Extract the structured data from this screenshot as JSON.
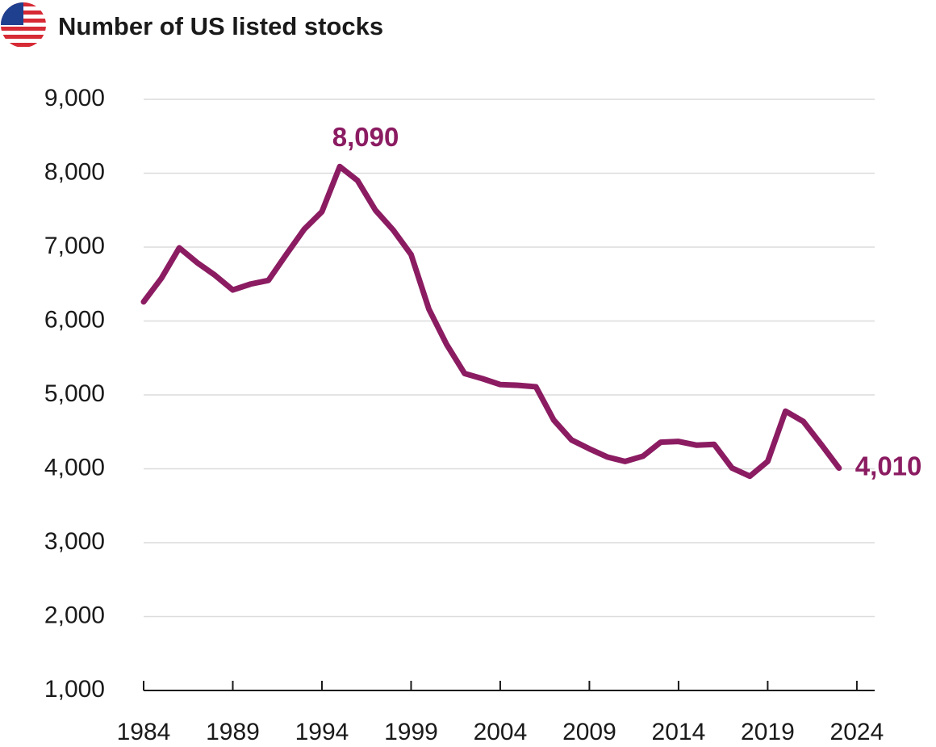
{
  "chart_data": {
    "type": "line",
    "title": "Number of US listed stocks",
    "x": [
      1984,
      1985,
      1986,
      1987,
      1988,
      1989,
      1990,
      1991,
      1992,
      1993,
      1994,
      1995,
      1996,
      1997,
      1998,
      1999,
      2000,
      2001,
      2002,
      2003,
      2004,
      2005,
      2006,
      2007,
      2008,
      2009,
      2010,
      2011,
      2012,
      2013,
      2014,
      2015,
      2016,
      2017,
      2018,
      2019,
      2020,
      2021,
      2022,
      2023
    ],
    "series": [
      {
        "name": "US listed stocks",
        "color": "#8b1c62",
        "values": [
          6260,
          6580,
          6990,
          6790,
          6620,
          6420,
          6500,
          6550,
          6900,
          7240,
          7480,
          8090,
          7900,
          7500,
          7230,
          6900,
          6160,
          5680,
          5290,
          5220,
          5140,
          5130,
          5110,
          4660,
          4390,
          4270,
          4160,
          4100,
          4170,
          4360,
          4370,
          4320,
          4330,
          4010,
          3900,
          4100,
          4780,
          4640,
          4330,
          4010
        ],
        "value_labels": [
          null,
          null,
          null,
          null,
          null,
          null,
          null,
          null,
          null,
          null,
          null,
          "8,090",
          null,
          null,
          null,
          null,
          null,
          null,
          null,
          null,
          null,
          null,
          null,
          null,
          null,
          null,
          null,
          null,
          null,
          null,
          null,
          null,
          null,
          null,
          null,
          null,
          null,
          null,
          null,
          "4,010"
        ]
      }
    ],
    "xlim": [
      1984,
      2025
    ],
    "xticks": [
      1984,
      1989,
      1994,
      1999,
      2004,
      2009,
      2014,
      2019,
      2024
    ],
    "ylim": [
      1000,
      9000
    ],
    "yticks": [
      {
        "value": 1000,
        "label": "1,000"
      },
      {
        "value": 2000,
        "label": "2,000"
      },
      {
        "value": 3000,
        "label": "3,000"
      },
      {
        "value": 4000,
        "label": "4,000"
      },
      {
        "value": 5000,
        "label": "5,000"
      },
      {
        "value": 6000,
        "label": "6,000"
      },
      {
        "value": 7000,
        "label": "7,000"
      },
      {
        "value": 8000,
        "label": "8,000"
      },
      {
        "value": 9000,
        "label": "9,000"
      }
    ],
    "grid": true
  }
}
